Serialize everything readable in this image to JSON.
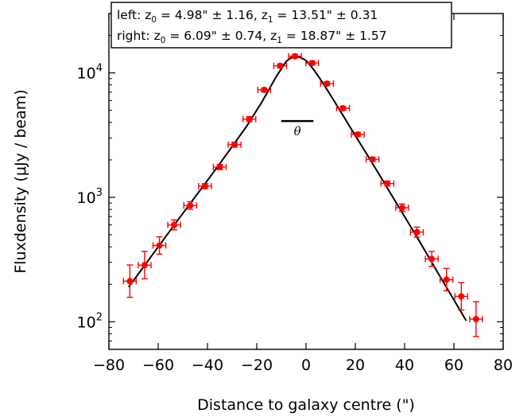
{
  "chart_data": {
    "type": "scatter",
    "xlabel": "Distance to galaxy centre (\")",
    "ylabel": "Fluxdensity (μJy / beam)",
    "xlim": [
      -80,
      80
    ],
    "ylim": [
      60,
      30000
    ],
    "yscale": "log",
    "grid": false,
    "x_ticks": [
      -80,
      -60,
      -40,
      -20,
      0,
      20,
      40,
      60,
      80
    ],
    "x_tick_labels": [
      "−80",
      "−60",
      "−40",
      "−20",
      "0",
      "20",
      "40",
      "60",
      "80"
    ],
    "y_ticks": [
      100,
      1000,
      10000
    ],
    "y_tick_labels": [
      {
        "base": "10",
        "exp": "2"
      },
      {
        "base": "10",
        "exp": "3"
      },
      {
        "base": "10",
        "exp": "4"
      }
    ],
    "legend": {
      "placement": "top-left",
      "lines": [
        {
          "prefix": "left: z",
          "sub0": "0",
          "mid": " = 4.98\" ± 1.16, z",
          "sub1": "1",
          "suffix": " = 13.51\" ± 0.31"
        },
        {
          "prefix": "right: z",
          "sub0": "0",
          "mid": " = 6.09\" ± 0.74, z",
          "sub1": "1",
          "suffix": " = 18.87\" ± 1.57"
        }
      ]
    },
    "annotation": {
      "label": "θ",
      "x_range": [
        -10,
        3
      ],
      "y": 4100
    },
    "points": {
      "color": "#ff0000",
      "x_err": 2.6,
      "data": [
        {
          "x": -71.5,
          "y": 212,
          "y_err": 0.13
        },
        {
          "x": -65.5,
          "y": 285,
          "y_err": 0.11
        },
        {
          "x": -59.5,
          "y": 410,
          "y_err": 0.07
        },
        {
          "x": -53.5,
          "y": 600,
          "y_err": 0.04
        },
        {
          "x": -47.0,
          "y": 860,
          "y_err": 0.03
        },
        {
          "x": -41.0,
          "y": 1230,
          "y_err": 0.02
        },
        {
          "x": -35.0,
          "y": 1750,
          "y_err": 0.02
        },
        {
          "x": -29.0,
          "y": 2650,
          "y_err": 0.02
        },
        {
          "x": -23.0,
          "y": 4250,
          "y_err": 0.02
        },
        {
          "x": -17.0,
          "y": 7300,
          "y_err": 0.015
        },
        {
          "x": -10.5,
          "y": 11400,
          "y_err": 0.015
        },
        {
          "x": -4.5,
          "y": 13600,
          "y_err": 0.015
        },
        {
          "x": 2.5,
          "y": 12000,
          "y_err": 0.015
        },
        {
          "x": 8.5,
          "y": 8200,
          "y_err": 0.015
        },
        {
          "x": 15.0,
          "y": 5200,
          "y_err": 0.015
        },
        {
          "x": 21.0,
          "y": 3200,
          "y_err": 0.015
        },
        {
          "x": 27.0,
          "y": 2020,
          "y_err": 0.015
        },
        {
          "x": 33.0,
          "y": 1290,
          "y_err": 0.02
        },
        {
          "x": 39.0,
          "y": 825,
          "y_err": 0.03
        },
        {
          "x": 45.0,
          "y": 525,
          "y_err": 0.04
        },
        {
          "x": 51.0,
          "y": 320,
          "y_err": 0.06
        },
        {
          "x": 57.0,
          "y": 218,
          "y_err": 0.09
        },
        {
          "x": 63.0,
          "y": 160,
          "y_err": 0.11
        },
        {
          "x": 69.0,
          "y": 105,
          "y_err": 0.14
        }
      ]
    },
    "fit_curve": {
      "color": "#000000",
      "x": [
        -72,
        -66,
        -60,
        -54,
        -48,
        -42,
        -36,
        -30,
        -24,
        -18,
        -12,
        -8,
        -5,
        -3,
        0,
        3,
        6,
        10,
        15,
        20,
        25,
        30,
        35,
        40,
        45,
        50,
        55,
        60,
        65
      ],
      "y": [
        190,
        275,
        400,
        580,
        840,
        1210,
        1750,
        2560,
        3750,
        5800,
        9400,
        12400,
        13700,
        13500,
        12600,
        10700,
        8800,
        6600,
        4550,
        3130,
        2170,
        1490,
        1020,
        700,
        480,
        325,
        220,
        150,
        102
      ]
    }
  }
}
